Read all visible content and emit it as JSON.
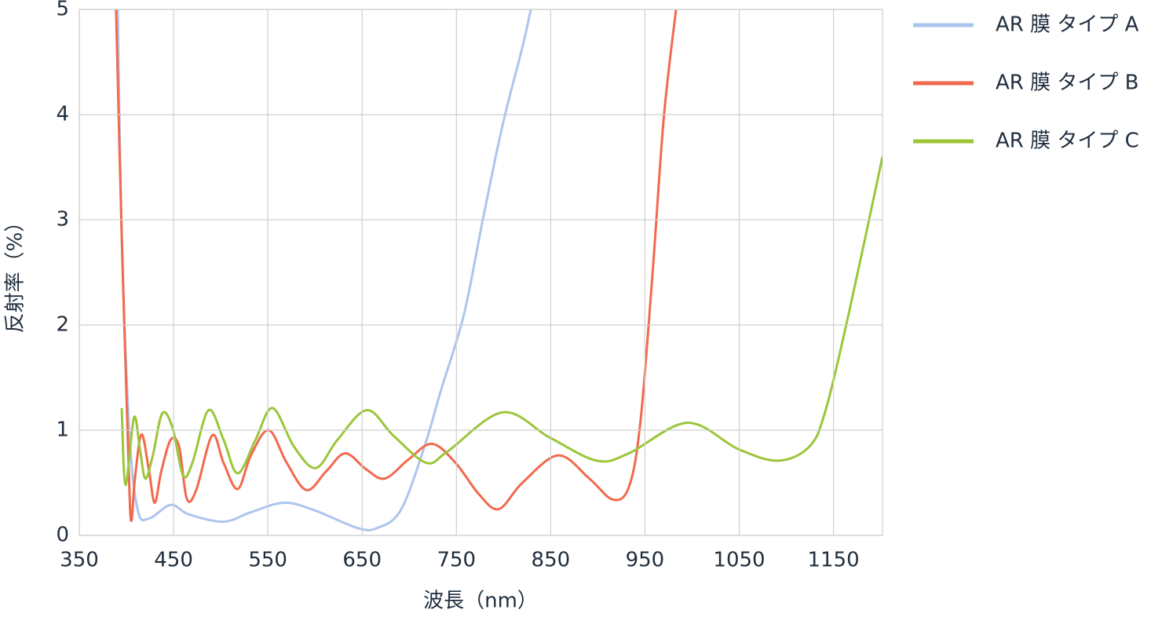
{
  "chart_data": {
    "type": "line",
    "x_label": "波長（nm）",
    "y_label": "反射率（%）",
    "xlim": [
      350,
      1202
    ],
    "ylim": [
      0,
      5
    ],
    "xticks": [
      350,
      450,
      550,
      650,
      750,
      850,
      950,
      1050,
      1150
    ],
    "yticks": [
      0,
      1,
      2,
      3,
      4,
      5
    ],
    "grid": true,
    "legend": "right",
    "series": [
      {
        "name": "AR 膜 タイプ A",
        "color": "#adc5ee",
        "x": [
          390.8,
          395,
          403,
          412,
          424,
          447,
          466,
          503,
          532,
          567,
          599,
          645,
          666,
          691,
          716,
          733,
          758,
          778,
          799,
          820,
          829
        ],
        "values": [
          5,
          2.85,
          1.0,
          0.24,
          0.16,
          0.29,
          0.2,
          0.13,
          0.22,
          0.31,
          0.24,
          0.07,
          0.07,
          0.24,
          0.84,
          1.36,
          2.1,
          3.0,
          3.9,
          4.64,
          5
        ]
      },
      {
        "name": "AR 膜 タイプ B",
        "color": "#f26a4e",
        "x": [
          389,
          395,
          402,
          405,
          409,
          416,
          424,
          430,
          437,
          447,
          456,
          464,
          474,
          491,
          503,
          518,
          532,
          551,
          570,
          591,
          612,
          632,
          654,
          674,
          699,
          724,
          749,
          774,
          795,
          820,
          858,
          891,
          916,
          933,
          945,
          958,
          970,
          983
        ],
        "values": [
          5,
          2.85,
          0.76,
          0.14,
          0.54,
          0.96,
          0.61,
          0.31,
          0.61,
          0.91,
          0.84,
          0.35,
          0.43,
          0.95,
          0.69,
          0.44,
          0.76,
          1.0,
          0.69,
          0.43,
          0.61,
          0.78,
          0.63,
          0.54,
          0.72,
          0.87,
          0.69,
          0.39,
          0.25,
          0.5,
          0.76,
          0.54,
          0.34,
          0.46,
          1.06,
          2.48,
          3.97,
          5
        ]
      },
      {
        "name": "AR 膜 タイプ C",
        "color": "#9cc63a",
        "x": [
          395,
          399,
          408,
          414,
          420,
          428,
          438,
          449,
          460,
          470,
          487,
          503,
          518,
          537,
          555,
          578,
          601,
          624,
          655,
          683,
          718,
          741,
          799,
          849,
          899,
          933,
          995,
          1049,
          1091,
          1124,
          1141,
          1166,
          1202
        ],
        "values": [
          1.21,
          0.48,
          1.12,
          0.84,
          0.54,
          0.76,
          1.16,
          1.02,
          0.57,
          0.69,
          1.19,
          0.91,
          0.59,
          0.91,
          1.21,
          0.84,
          0.64,
          0.91,
          1.19,
          0.95,
          0.69,
          0.8,
          1.17,
          0.93,
          0.71,
          0.78,
          1.07,
          0.82,
          0.71,
          0.84,
          1.17,
          2.1,
          3.6
        ]
      }
    ]
  }
}
